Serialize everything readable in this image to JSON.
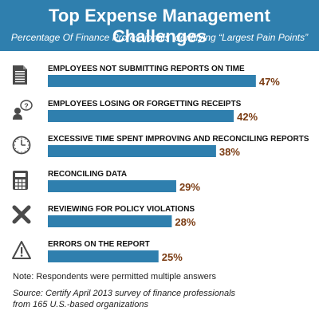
{
  "chart_data": {
    "type": "bar",
    "orientation": "horizontal",
    "title": "Top Expense Management Challenges",
    "subtitle": "Percentage Of Finance Professionals Identifying “Largest Pain Points”",
    "categories": [
      "EMPLOYEES NOT SUBMITTING REPORTS ON TIME",
      "EMPLOYEES LOSING OR FORGETTING RECEIPTS",
      "EXCESSIVE TIME SPENT IMPROVING AND RECONCILING REPORTS",
      "RECONCILING DATA",
      "REVIEWING FOR POLICY VIOLATIONS",
      "ERRORS ON THE REPORT"
    ],
    "values": [
      47,
      42,
      38,
      29,
      28,
      25
    ],
    "value_labels": [
      "47%",
      "42%",
      "38%",
      "29%",
      "28%",
      "25%"
    ],
    "icons": [
      "document-icon",
      "person-question-icon",
      "clock-icon",
      "calculator-icon",
      "x-mark-icon",
      "warning-triangle-icon"
    ],
    "colors": {
      "header": "#2f7fae",
      "bar": "#2f7fae",
      "value_text": "#7a3b12",
      "icon": "#4a4a4a",
      "label_text": "#111111"
    },
    "grid": false,
    "legend": "none"
  },
  "footer": {
    "note": "Note: Respondents were permitted multiple answers",
    "source_line1": "Source: Certify April 2013 survey of finance professionals",
    "source_line2": "from 165 U.S.-based organizations"
  }
}
